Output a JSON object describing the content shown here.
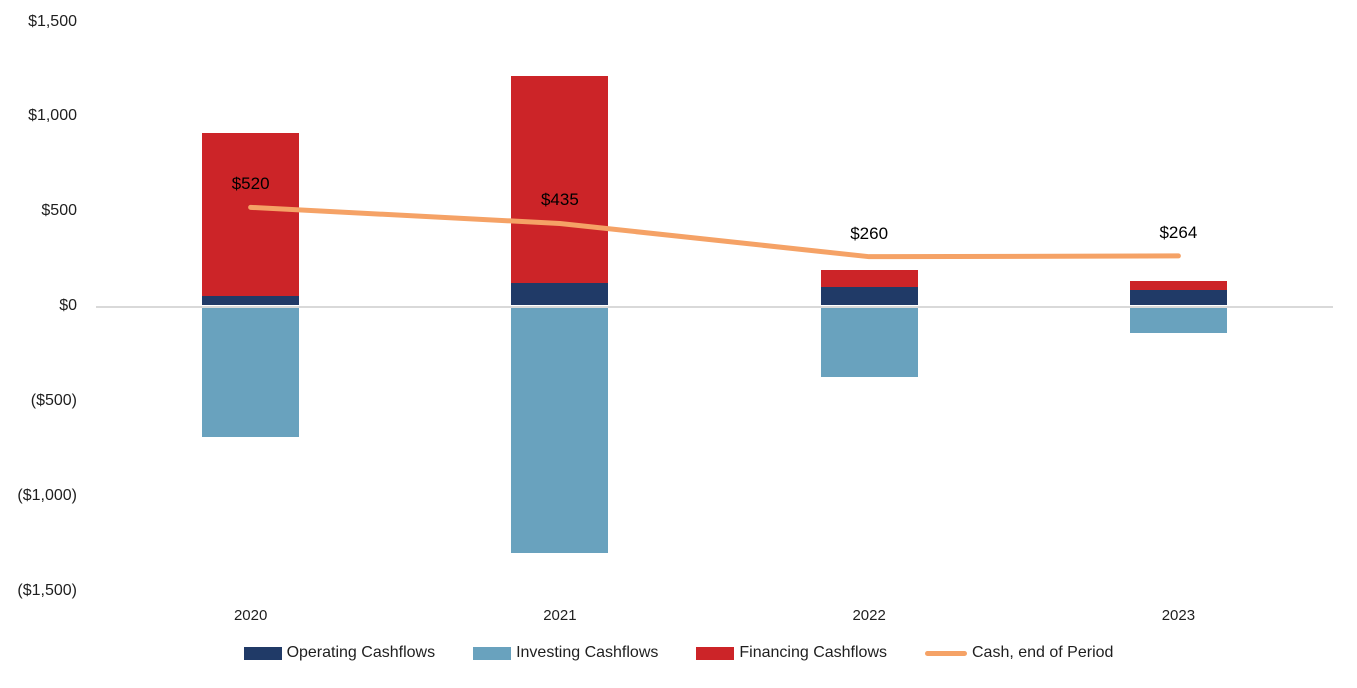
{
  "chart_data": {
    "type": "combo-stacked-bar-line",
    "categories": [
      "2020",
      "2021",
      "2022",
      "2023"
    ],
    "series": [
      {
        "name": "Operating Cashflows",
        "type": "bar",
        "color": "#203A67",
        "values": [
          50,
          120,
          95,
          80
        ]
      },
      {
        "name": "Investing Cashflows",
        "type": "bar",
        "color": "#69A2BE",
        "values": [
          -690,
          -1300,
          -375,
          -140
        ]
      },
      {
        "name": "Financing Cashflows",
        "type": "bar",
        "color": "#CC2428",
        "values": [
          860,
          1090,
          90,
          50
        ]
      },
      {
        "name": "Cash, end of Period",
        "type": "line",
        "color": "#F5A266",
        "values": [
          520,
          435,
          260,
          264
        ],
        "point_labels": [
          "$520",
          "$435",
          "$260",
          "$264"
        ]
      }
    ],
    "y_axis": {
      "range": [
        -1500,
        1500
      ],
      "ticks": [
        {
          "label": "$1,500",
          "value": 1500
        },
        {
          "label": "$1,000",
          "value": 1000
        },
        {
          "label": "$500",
          "value": 500
        },
        {
          "label": "$0",
          "value": 0
        },
        {
          "label": "($500)",
          "value": -500
        },
        {
          "label": "($1,000)",
          "value": -1000
        },
        {
          "label": "($1,500)",
          "value": -1500
        }
      ]
    },
    "gridlines": "zero-baseline-only",
    "gridline_color": "#D9D9D9",
    "legend_position": "bottom",
    "background_color": "#FFFFFF",
    "text_color": "#1F1F1F"
  }
}
